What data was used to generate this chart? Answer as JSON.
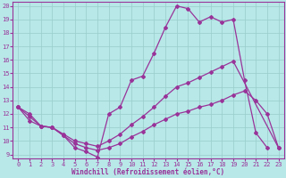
{
  "line1_x": [
    0,
    1,
    2,
    3,
    4,
    5,
    6,
    7,
    8,
    9,
    10,
    11,
    12,
    13,
    14,
    15,
    16,
    17,
    18,
    19,
    20,
    21,
    22
  ],
  "line1_y": [
    12.5,
    12.0,
    11.1,
    11.0,
    10.4,
    9.5,
    9.2,
    8.8,
    12.0,
    12.5,
    14.5,
    14.8,
    16.5,
    18.4,
    20.0,
    19.8,
    18.8,
    19.2,
    18.8,
    19.0,
    14.5,
    10.6,
    9.5
  ],
  "line2_x": [
    0,
    1,
    2,
    3,
    4,
    5,
    6,
    7,
    8,
    9,
    10,
    11,
    12,
    13,
    14,
    15,
    16,
    17,
    18,
    19,
    23
  ],
  "line2_y": [
    12.5,
    11.5,
    11.1,
    11.0,
    10.5,
    10.0,
    9.8,
    9.6,
    10.0,
    10.5,
    11.2,
    11.8,
    12.5,
    13.3,
    14.0,
    14.3,
    14.7,
    15.1,
    15.5,
    15.9,
    9.5
  ],
  "line3_x": [
    0,
    1,
    2,
    3,
    4,
    5,
    6,
    7,
    8,
    9,
    10,
    11,
    12,
    13,
    14,
    15,
    16,
    17,
    18,
    19,
    20,
    21,
    22,
    23
  ],
  "line3_y": [
    12.5,
    11.8,
    11.1,
    11.0,
    10.4,
    9.8,
    9.5,
    9.3,
    9.5,
    9.8,
    10.3,
    10.7,
    11.2,
    11.6,
    12.0,
    12.2,
    12.5,
    12.7,
    13.0,
    13.4,
    13.7,
    13.0,
    12.0,
    9.5
  ],
  "color": "#993399",
  "bg_color": "#b8e8e8",
  "grid_color": "#99cccc",
  "xlim_min": -0.5,
  "xlim_max": 23.5,
  "ylim_min": 8.7,
  "ylim_max": 20.3,
  "yticks": [
    9,
    10,
    11,
    12,
    13,
    14,
    15,
    16,
    17,
    18,
    19,
    20
  ],
  "xticks": [
    0,
    1,
    2,
    3,
    4,
    5,
    6,
    7,
    8,
    9,
    10,
    11,
    12,
    13,
    14,
    15,
    16,
    17,
    18,
    19,
    20,
    21,
    22,
    23
  ],
  "xlabel": "Windchill (Refroidissement éolien,°C)",
  "marker": "D",
  "markersize": 2.0,
  "linewidth": 0.9
}
